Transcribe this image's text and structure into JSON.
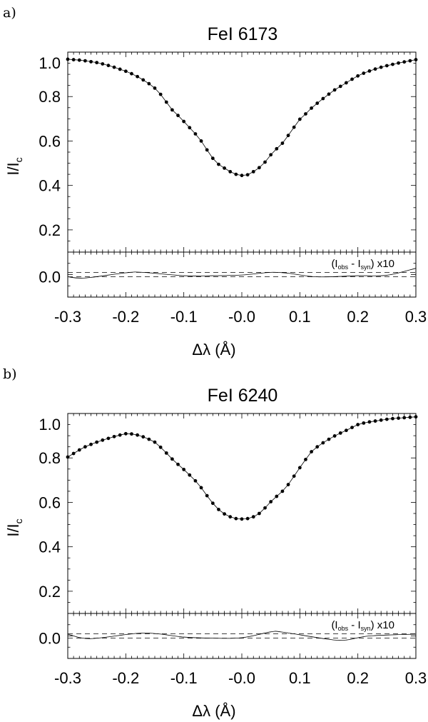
{
  "chart_data": [
    {
      "type": "line",
      "panel_label": "a)",
      "title": "FeI 6173",
      "xlabel": "Δλ  (Å)",
      "ylabel": "I/I",
      "ylabel_sub": "c",
      "xlim": [
        -0.3,
        0.3
      ],
      "ylim": [
        0.1,
        1.0
      ],
      "xticks": [
        "-0.3",
        "-0.2",
        "-0.1",
        "-0.0",
        "0.1",
        "0.2",
        "0.3"
      ],
      "xtick_values": [
        -0.3,
        -0.2,
        -0.1,
        0.0,
        0.1,
        0.2,
        0.3
      ],
      "yticks": [
        "0.2",
        "0.4",
        "0.6",
        "0.8",
        "1.0"
      ],
      "ytick_values": [
        0.2,
        0.4,
        0.6,
        0.8,
        1.0
      ],
      "x_start": -0.3,
      "x_step": 0.01,
      "observed": [
        0.968,
        0.966,
        0.964,
        0.961,
        0.957,
        0.953,
        0.947,
        0.94,
        0.932,
        0.923,
        0.914,
        0.903,
        0.89,
        0.875,
        0.858,
        0.838,
        0.81,
        0.775,
        0.74,
        0.715,
        0.688,
        0.66,
        0.632,
        0.6,
        0.56,
        0.522,
        0.495,
        0.478,
        0.462,
        0.45,
        0.445,
        0.448,
        0.462,
        0.48,
        0.505,
        0.538,
        0.565,
        0.59,
        0.625,
        0.662,
        0.698,
        0.722,
        0.748,
        0.77,
        0.791,
        0.811,
        0.83,
        0.846,
        0.862,
        0.878,
        0.893,
        0.905,
        0.915,
        0.924,
        0.932,
        0.939,
        0.945,
        0.951,
        0.956,
        0.961,
        0.966
      ],
      "residual": {
        "label_main": "(I",
        "label_sub1": "obs",
        "label_mid": " - I",
        "label_sub2": "syn",
        "label_end": ") x10",
        "ylim": [
          -0.1,
          0.1
        ],
        "yticks": [
          "0.0"
        ],
        "ytick_values": [
          0.0
        ],
        "dashed_levels": [
          0.01,
          -0.01
        ],
        "x": [
          -0.3,
          -0.27,
          -0.2,
          -0.17,
          -0.1,
          -0.05,
          0.0,
          0.05,
          0.08,
          0.13,
          0.2,
          0.25,
          0.3
        ],
        "values": [
          -0.01,
          -0.015,
          0.008,
          0.01,
          -0.005,
          -0.005,
          -0.002,
          0.01,
          0.006,
          -0.01,
          -0.005,
          -0.003,
          0.028
        ]
      }
    },
    {
      "type": "line",
      "panel_label": "b)",
      "title": "FeI 6240",
      "xlabel": "Δλ  (Å)",
      "ylabel": "I/I",
      "ylabel_sub": "c",
      "xlim": [
        -0.3,
        0.3
      ],
      "ylim": [
        0.1,
        1.0
      ],
      "xticks": [
        "-0.3",
        "-0.2",
        "-0.1",
        "-0.0",
        "0.1",
        "0.2",
        "0.3"
      ],
      "xtick_values": [
        -0.3,
        -0.2,
        -0.1,
        0.0,
        0.1,
        0.2,
        0.3
      ],
      "yticks": [
        "0.2",
        "0.4",
        "0.6",
        "0.8",
        "1.0"
      ],
      "ytick_values": [
        0.2,
        0.4,
        0.6,
        0.8,
        1.0
      ],
      "x_start": -0.3,
      "x_step": 0.01,
      "observed": [
        0.804,
        0.82,
        0.836,
        0.85,
        0.861,
        0.871,
        0.88,
        0.888,
        0.896,
        0.903,
        0.909,
        0.908,
        0.903,
        0.895,
        0.884,
        0.871,
        0.848,
        0.822,
        0.795,
        0.771,
        0.748,
        0.723,
        0.697,
        0.666,
        0.63,
        0.596,
        0.568,
        0.548,
        0.535,
        0.527,
        0.525,
        0.527,
        0.535,
        0.55,
        0.575,
        0.603,
        0.627,
        0.65,
        0.68,
        0.718,
        0.756,
        0.793,
        0.828,
        0.85,
        0.868,
        0.884,
        0.899,
        0.912,
        0.924,
        0.937,
        0.95,
        0.957,
        0.962,
        0.966,
        0.97,
        0.974,
        0.977,
        0.979,
        0.981,
        0.983,
        0.985
      ],
      "residual": {
        "label_main": "(I",
        "label_sub1": "obs",
        "label_mid": " - I",
        "label_sub2": "syn",
        "label_end": ") x10",
        "ylim": [
          -0.1,
          0.1
        ],
        "yticks": [
          "0.0"
        ],
        "ytick_values": [
          0.0
        ],
        "dashed_levels": [
          0.01,
          -0.01
        ],
        "x": [
          -0.3,
          -0.26,
          -0.17,
          -0.1,
          -0.05,
          0.0,
          0.05,
          0.07,
          0.15,
          0.18,
          0.22,
          0.3
        ],
        "values": [
          0.008,
          -0.012,
          0.013,
          -0.005,
          -0.01,
          -0.008,
          0.018,
          0.017,
          -0.015,
          -0.018,
          0.0,
          0.008
        ]
      }
    }
  ]
}
